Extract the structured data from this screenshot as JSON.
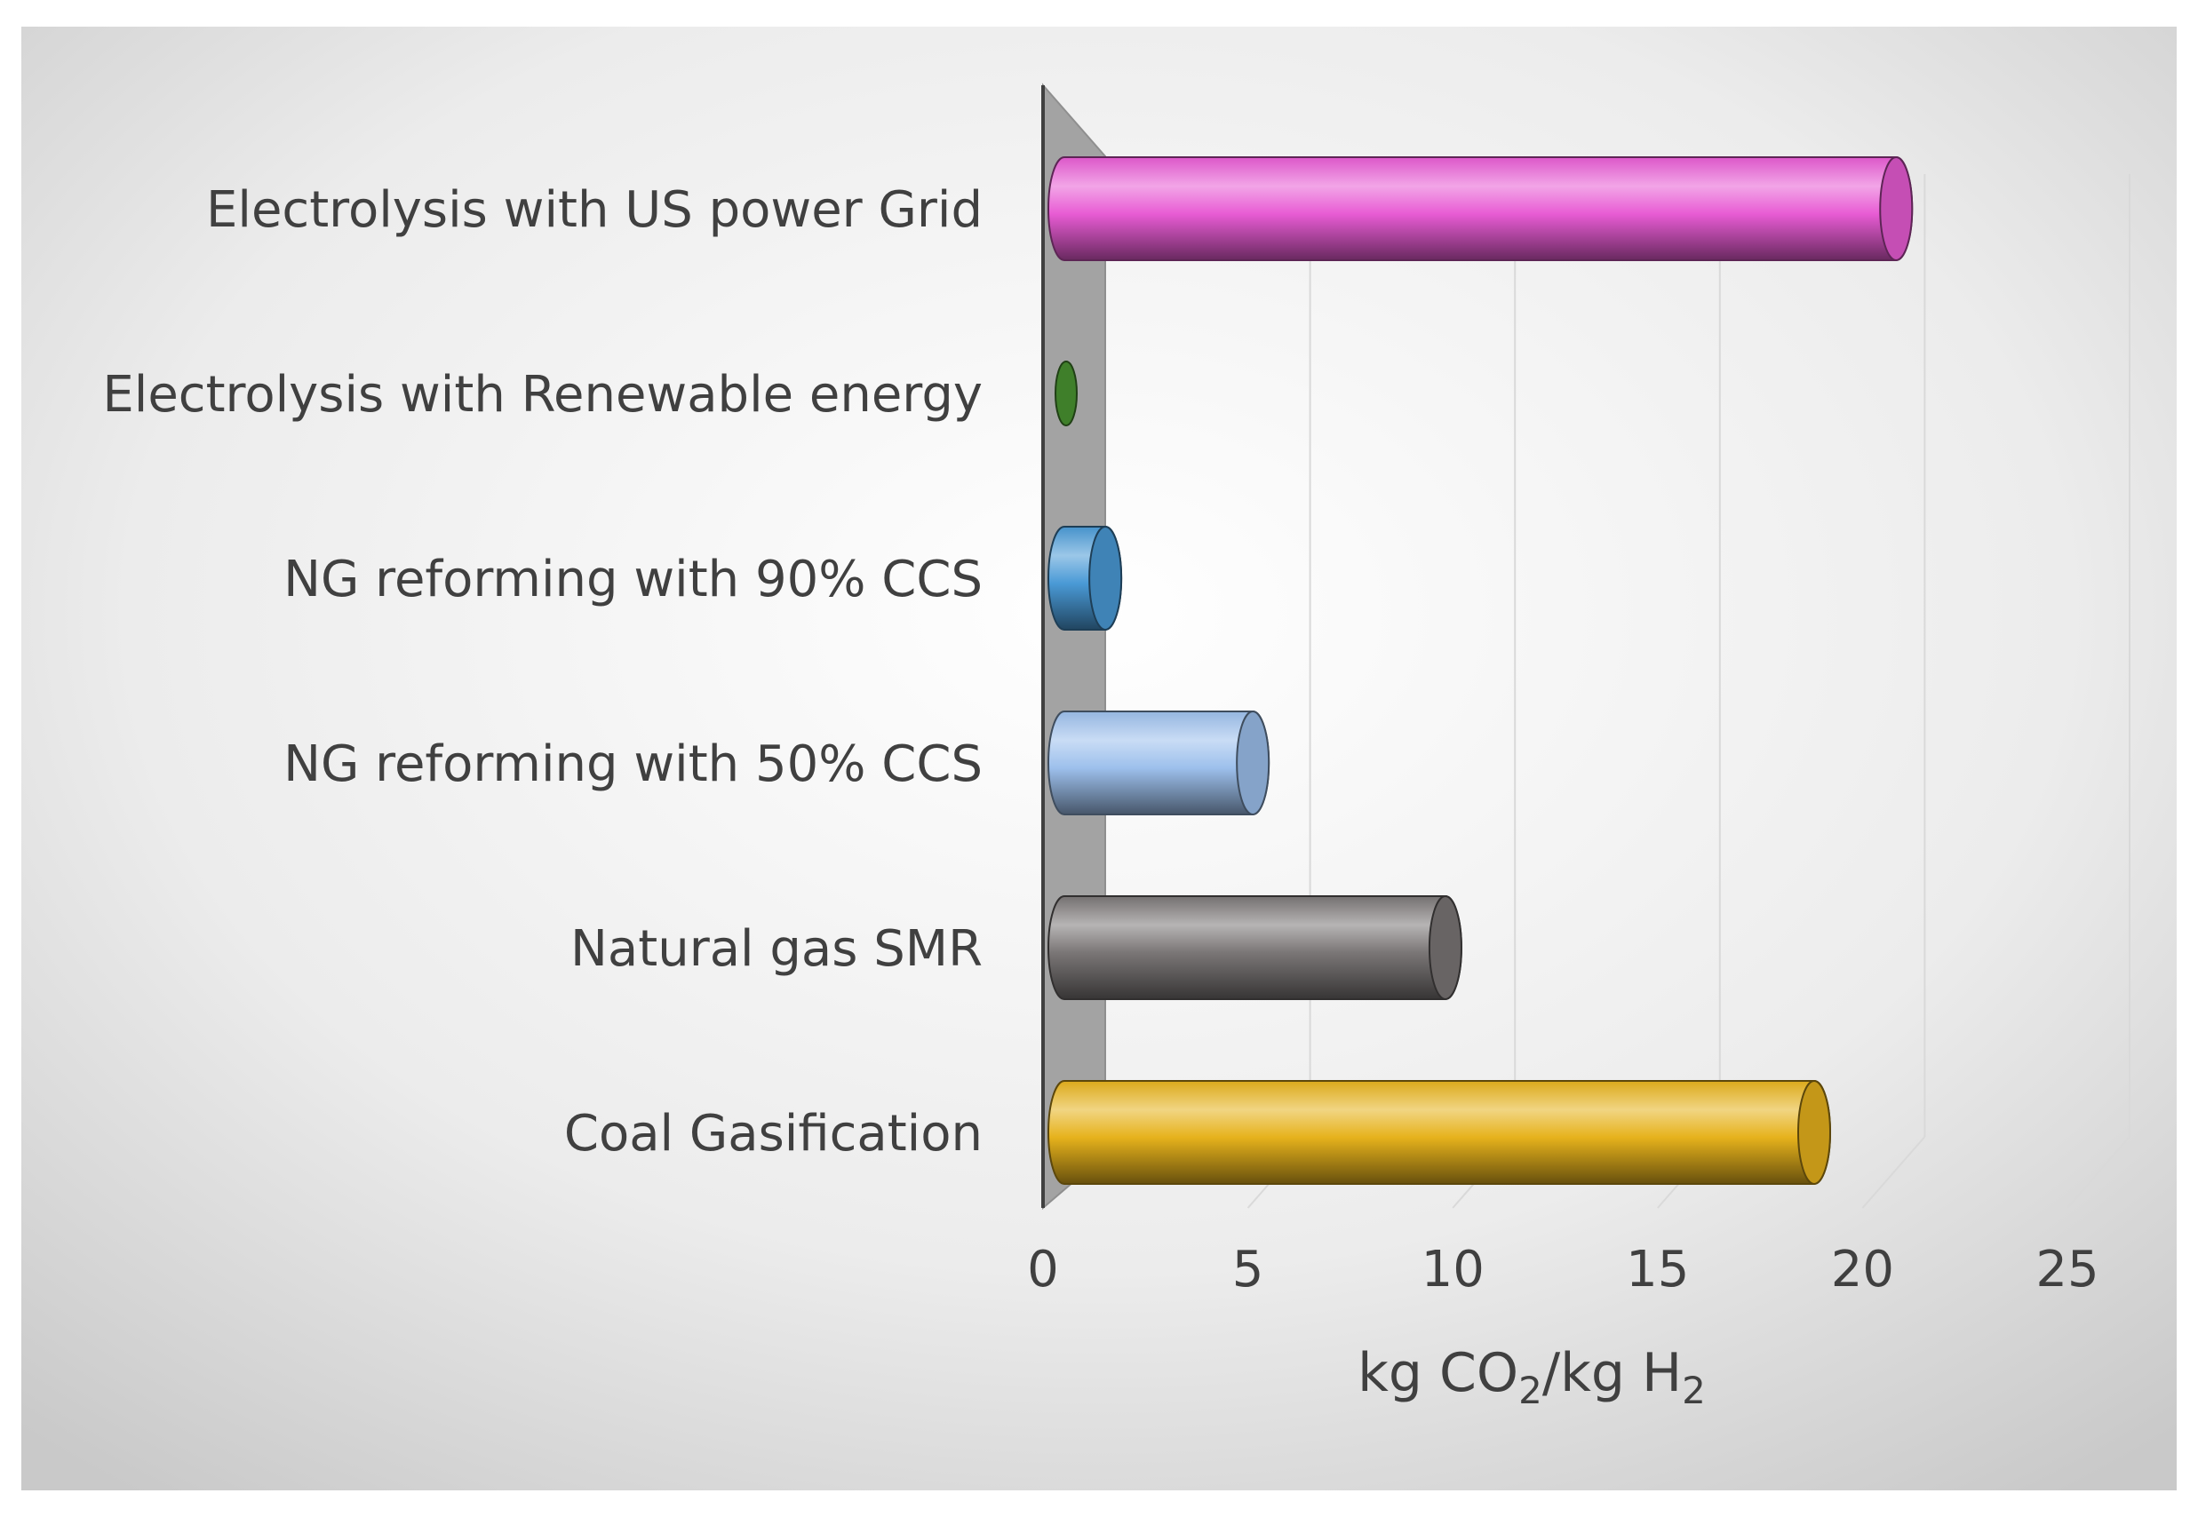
{
  "chart_data": {
    "type": "bar",
    "orientation": "horizontal",
    "style": "3d-cylinder",
    "categories": [
      "Electrolysis with US power Grid",
      "Electrolysis with Renewable energy",
      "NG reforming with 90% CCS",
      "NG reforming with 50% CCS",
      "Natural gas SMR",
      "Coal Gasification"
    ],
    "values": [
      20.3,
      0,
      1.0,
      4.6,
      9.3,
      18.3
    ],
    "colors": [
      "#e85cd4",
      "#3f7f2a",
      "#4a9ad6",
      "#9dc0ec",
      "#7a7676",
      "#e6b21c"
    ],
    "xlabel": {
      "prefix": "kg CO",
      "sub1": "2",
      "middle": "/kg H",
      "sub2": "2"
    },
    "xlim": [
      0,
      25
    ],
    "xticks": [
      "0",
      "5",
      "10",
      "15",
      "20",
      "25"
    ],
    "grid": true,
    "legend": "none"
  }
}
